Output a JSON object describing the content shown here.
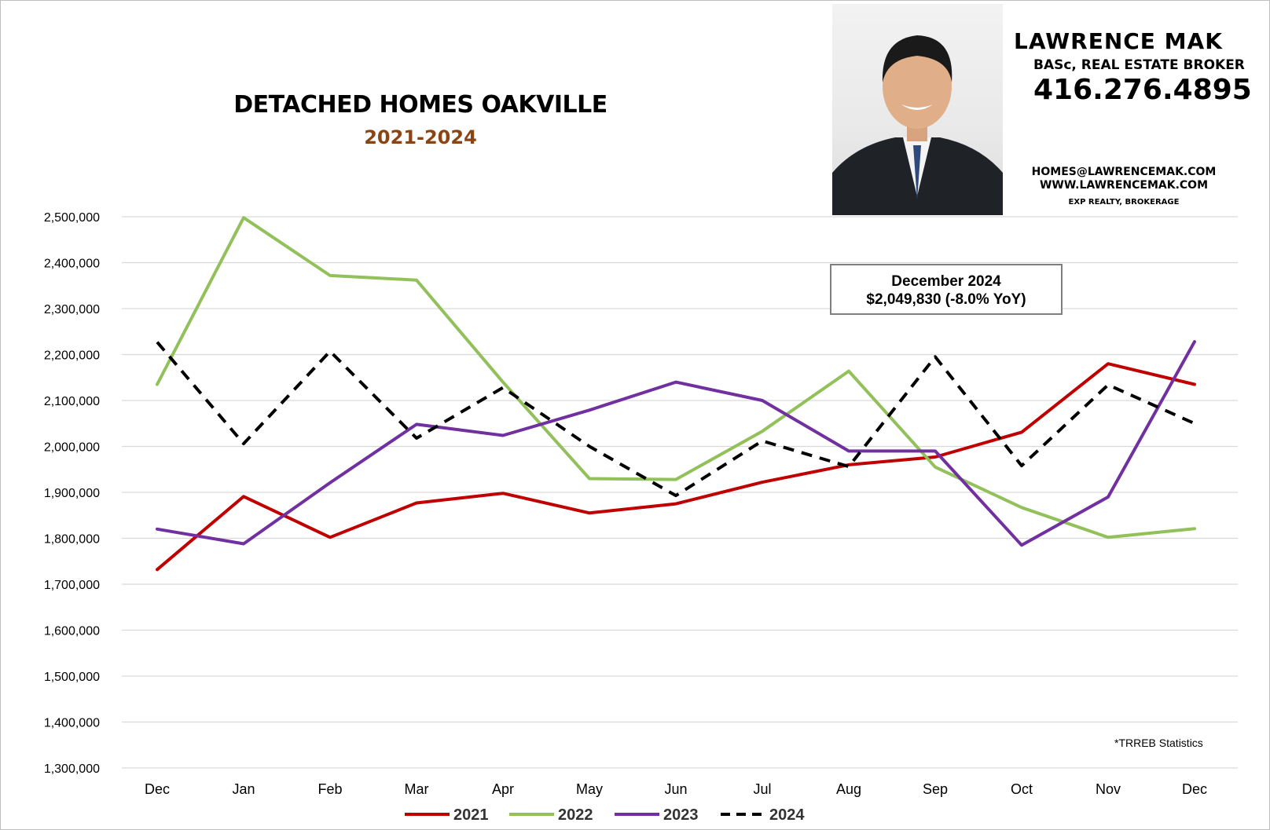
{
  "chart_data": {
    "type": "line",
    "title": "DETACHED HOMES OAKVILLE",
    "subtitle": "2021-2024",
    "xlabel": "",
    "ylabel": "",
    "categories": [
      "Dec",
      "Jan",
      "Feb",
      "Mar",
      "Apr",
      "May",
      "Jun",
      "Jul",
      "Aug",
      "Sep",
      "Oct",
      "Nov",
      "Dec"
    ],
    "ylim": [
      1300000,
      2500000
    ],
    "yticks": [
      "1,300,000",
      "1,400,000",
      "1,500,000",
      "1,600,000",
      "1,700,000",
      "1,800,000",
      "1,900,000",
      "2,000,000",
      "2,100,000",
      "2,200,000",
      "2,300,000",
      "2,400,000",
      "2,500,000"
    ],
    "grid": true,
    "legend_position": "bottom",
    "series": [
      {
        "name": "2021",
        "color": "#c00000",
        "dashed": false,
        "values": [
          1732000,
          1891000,
          1802000,
          1877000,
          1898000,
          1855000,
          1875000,
          1922000,
          1960000,
          1977000,
          2031000,
          2180000,
          2135000
        ]
      },
      {
        "name": "2022",
        "color": "#92c05a",
        "dashed": false,
        "values": [
          2135000,
          2498000,
          2372000,
          2362000,
          2140000,
          1930000,
          1928000,
          2033000,
          2164000,
          1955000,
          1867000,
          1802000,
          1821000
        ]
      },
      {
        "name": "2023",
        "color": "#7030a0",
        "dashed": false,
        "values": [
          1820000,
          1788000,
          1921000,
          2048000,
          2024000,
          2079000,
          2140000,
          2100000,
          1990000,
          1990000,
          1785000,
          1890000,
          2228000
        ]
      },
      {
        "name": "2024",
        "color": "#000000",
        "dashed": true,
        "values": [
          2227000,
          2006000,
          2207000,
          2018000,
          2128000,
          2000000,
          1893000,
          2012000,
          1956000,
          2195000,
          1958000,
          2134000,
          2049830
        ]
      }
    ]
  },
  "callout": {
    "line1": "December 2024",
    "line2": "$2,049,830 (-8.0% YoY)"
  },
  "source_note": "*TRREB Statistics",
  "agent": {
    "name": "LAWRENCE MAK",
    "credentials": "BASc, REAL ESTATE BROKER",
    "phone": "416.276.4895",
    "email": "HOMES@LAWRENCEMAK.COM",
    "website": "WWW.LAWRENCEMAK.COM",
    "brokerage": "EXP REALTY, BROKERAGE"
  }
}
